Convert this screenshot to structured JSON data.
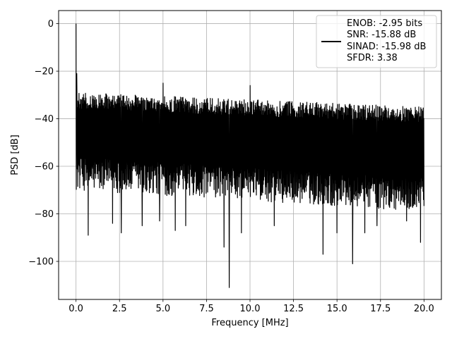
{
  "chart_data": {
    "type": "line",
    "xlabel": "Frequency [MHz]",
    "ylabel": "PSD [dB]",
    "xlim": [
      -1.0,
      21.0
    ],
    "ylim": [
      -116.0,
      5.5
    ],
    "x_ticks": [
      0.0,
      2.5,
      5.0,
      7.5,
      10.0,
      12.5,
      15.0,
      17.5,
      20.0
    ],
    "x_tick_labels": [
      "0.0",
      "2.5",
      "5.0",
      "7.5",
      "10.0",
      "12.5",
      "15.0",
      "17.5",
      "20.0"
    ],
    "y_ticks": [
      0,
      -20,
      -40,
      -60,
      -80,
      -100
    ],
    "y_tick_labels": [
      "0",
      "−20",
      "−40",
      "−60",
      "−80",
      "−100"
    ],
    "grid": true,
    "legend_position": "top-right",
    "line_color": "#000000",
    "series": [
      {
        "legend_lines": [
          "ENOB: -2.95 bits",
          "SNR: -15.88 dB",
          "SINAD: -15.98 dB",
          "SFDR: 3.38"
        ],
        "noise_floor": {
          "x_range": [
            0.0,
            20.0
          ],
          "upper_envelope_db": [
            -29,
            -35
          ],
          "lower_envelope_db": [
            -70,
            -79
          ]
        },
        "features": [
          {
            "x": 0.0,
            "y": 0.0
          },
          {
            "x": 0.05,
            "y": -21.0
          },
          {
            "x": 5.0,
            "y": -25.0
          },
          {
            "x": 10.0,
            "y": -26.0
          },
          {
            "x": 0.7,
            "y": -89.0
          },
          {
            "x": 2.1,
            "y": -84.0
          },
          {
            "x": 2.6,
            "y": -88.0
          },
          {
            "x": 3.8,
            "y": -85.0
          },
          {
            "x": 4.8,
            "y": -83.0
          },
          {
            "x": 5.7,
            "y": -87.0
          },
          {
            "x": 6.3,
            "y": -85.0
          },
          {
            "x": 8.5,
            "y": -94.0
          },
          {
            "x": 8.8,
            "y": -111.0
          },
          {
            "x": 9.5,
            "y": -88.0
          },
          {
            "x": 11.4,
            "y": -85.0
          },
          {
            "x": 14.2,
            "y": -97.0
          },
          {
            "x": 15.0,
            "y": -88.0
          },
          {
            "x": 15.9,
            "y": -101.0
          },
          {
            "x": 16.6,
            "y": -88.0
          },
          {
            "x": 17.3,
            "y": -85.0
          },
          {
            "x": 19.0,
            "y": -83.0
          },
          {
            "x": 19.8,
            "y": -92.0
          }
        ]
      }
    ]
  }
}
